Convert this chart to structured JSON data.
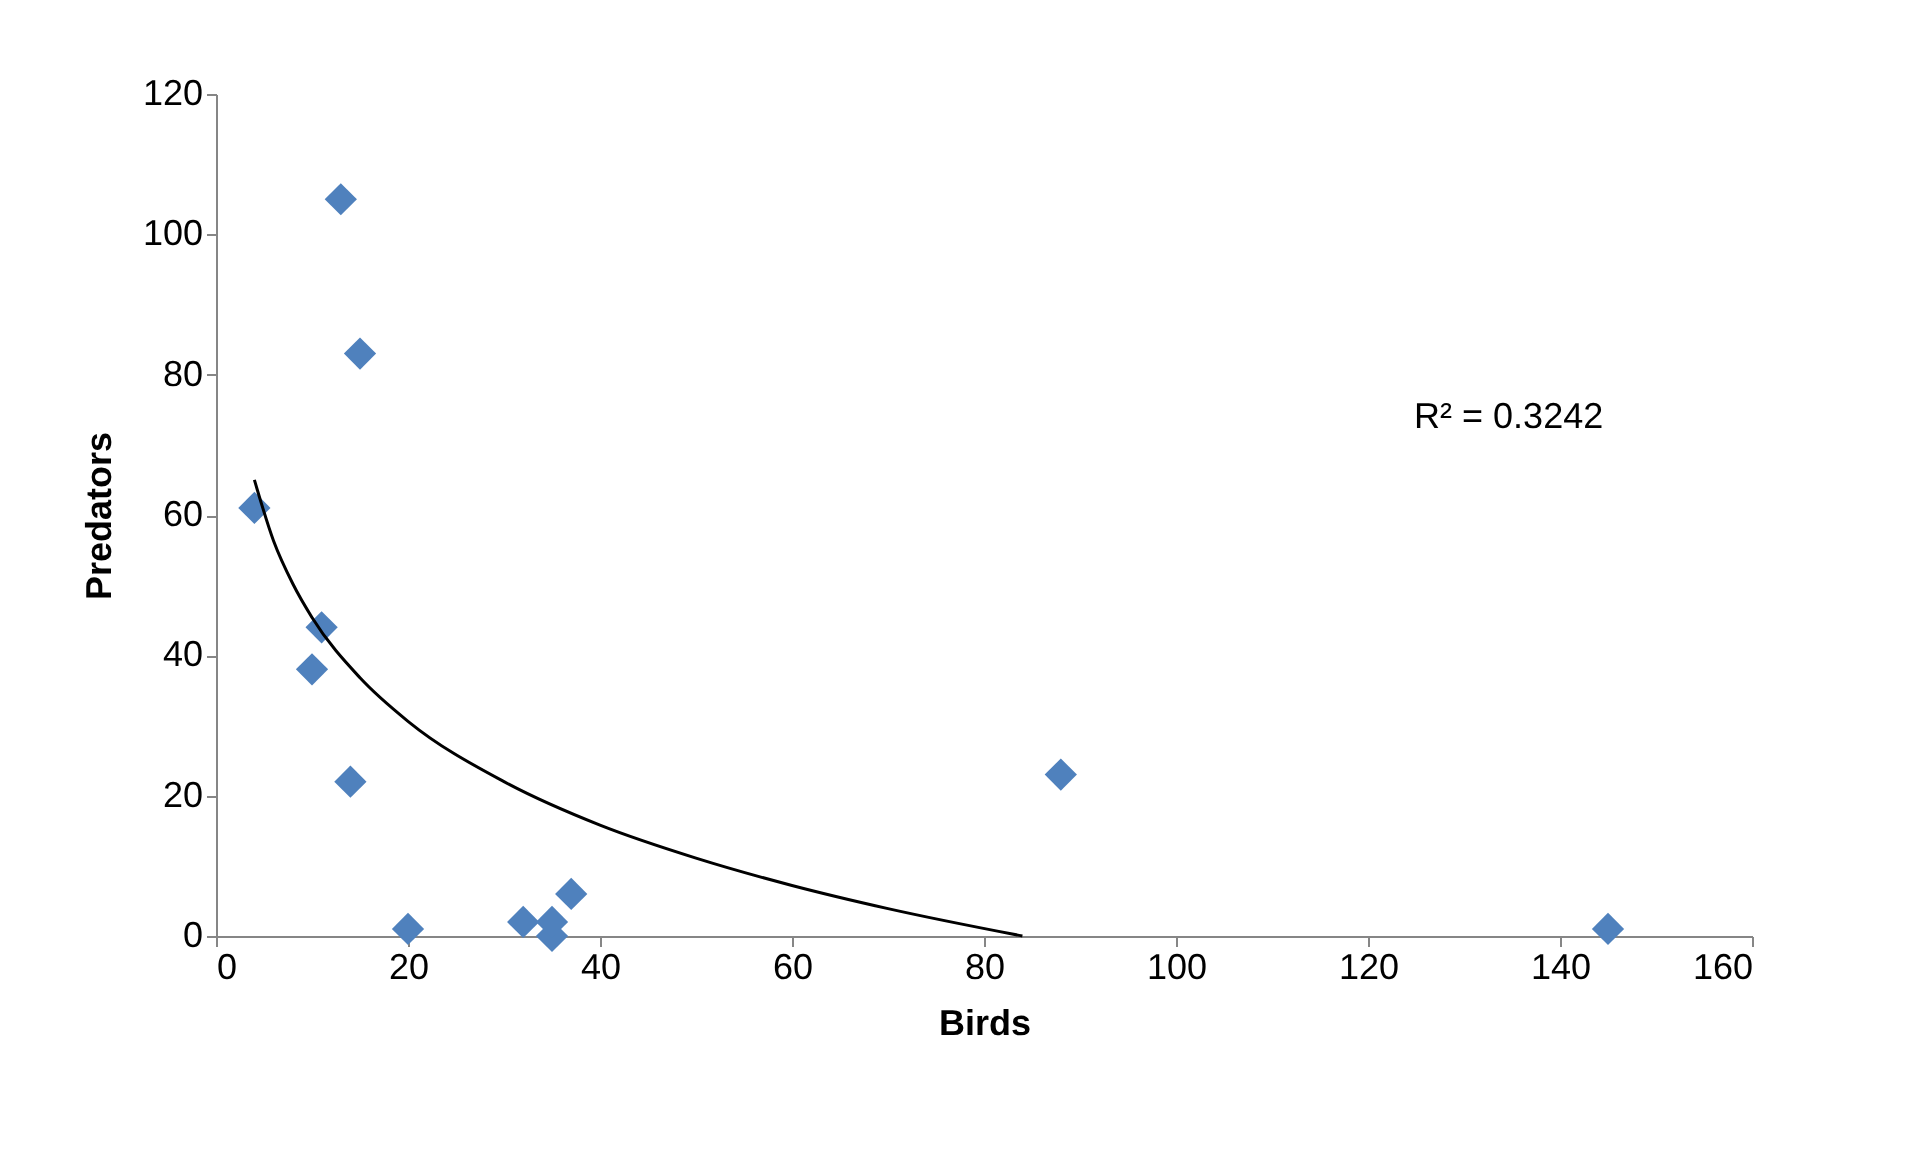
{
  "chart_data": {
    "type": "scatter",
    "xlabel": "Birds",
    "ylabel": "Predators",
    "xlim": [
      0,
      160
    ],
    "xticks": [
      0,
      20,
      40,
      60,
      80,
      100,
      120,
      140,
      160
    ],
    "ylim": [
      0,
      120
    ],
    "yticks": [
      0,
      20,
      40,
      60,
      80,
      100,
      120
    ],
    "grid": false,
    "marker": "diamond",
    "series": [
      {
        "color": "#4f81bd",
        "x": [
          4,
          13,
          15,
          11,
          10,
          14,
          20,
          32,
          35,
          35,
          37,
          88,
          145
        ],
        "values": [
          61,
          105,
          83,
          44,
          38,
          22,
          1,
          2,
          0,
          2,
          6,
          23,
          1
        ]
      },
      {
        "type": "line",
        "color": "#000000",
        "marker": "none",
        "line_style": "solid",
        "x": [
          4,
          6,
          8,
          10,
          15,
          20,
          30,
          40,
          50,
          60,
          70,
          84
        ],
        "values": [
          65,
          56.3,
          50.2,
          45.4,
          36.8,
          30.6,
          22,
          15.8,
          11.1,
          7.2,
          3.9,
          0
        ]
      }
    ],
    "annotations": [
      "R² = 0.3242"
    ]
  }
}
